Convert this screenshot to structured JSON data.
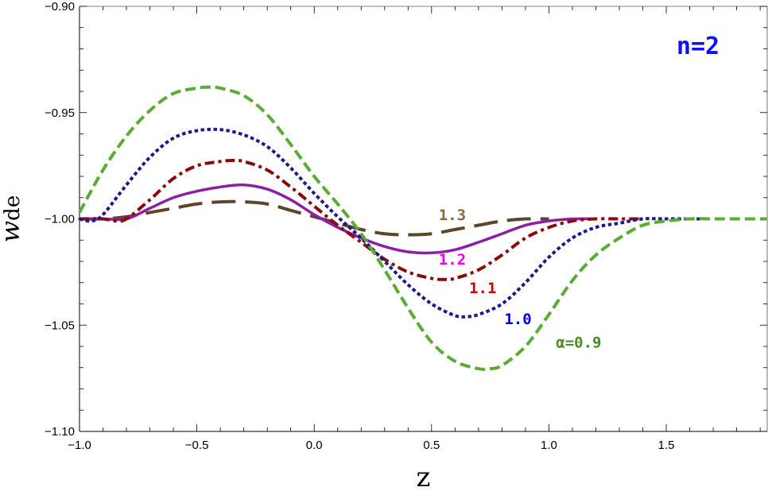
{
  "chart_data": {
    "type": "line",
    "xlabel": "z",
    "ylabel_main": "w",
    "ylabel_sub": "de",
    "panel_label": "n=2",
    "xlim": [
      -1.0,
      1.93
    ],
    "ylim": [
      -1.1,
      -0.9
    ],
    "x_ticks": [
      -1.0,
      -0.5,
      0.0,
      0.5,
      1.0,
      1.5
    ],
    "x_tick_labels": [
      "−1.0",
      "−0.5",
      "0.0",
      "0.5",
      "1.0",
      "1.5"
    ],
    "y_ticks": [
      -0.9,
      -0.95,
      -1.0,
      -1.05,
      -1.1
    ],
    "y_tick_labels": [
      "−0.90",
      "−0.95",
      "−1.00",
      "−1.05",
      "−1.10"
    ],
    "colors": {
      "alpha_0_9": "#5aac34",
      "alpha_1_0": "#1a1a8c",
      "alpha_1_1": "#8b0a0a",
      "alpha_1_2": "#8b1fa6",
      "alpha_1_3": "#5c4528",
      "label_1_0": "#0000ee",
      "label_1_1": "#cc0000",
      "label_1_2": "#ee00ee",
      "label_1_3": "#8b6a3e",
      "label_0_9": "#4a8a28",
      "panel": "#1010ff"
    },
    "series": [
      {
        "name": "α=0.9",
        "style": "dashed",
        "x": [
          -1.0,
          -0.9,
          -0.8,
          -0.7,
          -0.6,
          -0.5,
          -0.45,
          -0.4,
          -0.3,
          -0.2,
          -0.1,
          0.0,
          0.1,
          0.2,
          0.3,
          0.4,
          0.5,
          0.6,
          0.7,
          0.75,
          0.8,
          0.9,
          1.0,
          1.1,
          1.2,
          1.3,
          1.4,
          1.5,
          1.6,
          1.7,
          1.8,
          1.93
        ],
        "y": [
          -0.997,
          -0.977,
          -0.961,
          -0.949,
          -0.941,
          -0.9385,
          -0.938,
          -0.9385,
          -0.942,
          -0.951,
          -0.965,
          -0.98,
          -0.993,
          -1.007,
          -1.024,
          -1.042,
          -1.058,
          -1.067,
          -1.0705,
          -1.0705,
          -1.069,
          -1.06,
          -1.045,
          -1.029,
          -1.017,
          -1.009,
          -1.003,
          -1.001,
          -1.0,
          -1.0,
          -1.0,
          -1.0
        ]
      },
      {
        "name": "1.0",
        "style": "dotted",
        "x": [
          -1.0,
          -0.95,
          -0.9,
          -0.8,
          -0.7,
          -0.6,
          -0.5,
          -0.4,
          -0.3,
          -0.2,
          -0.1,
          0.0,
          0.1,
          0.2,
          0.3,
          0.4,
          0.5,
          0.6,
          0.65,
          0.7,
          0.8,
          0.9,
          1.0,
          1.1,
          1.2,
          1.3,
          1.4,
          1.5,
          1.6,
          1.65
        ],
        "y": [
          -1.0,
          -1.001,
          -0.998,
          -0.984,
          -0.971,
          -0.962,
          -0.9585,
          -0.958,
          -0.9605,
          -0.966,
          -0.976,
          -0.988,
          -0.999,
          -1.009,
          -1.02,
          -1.031,
          -1.04,
          -1.0455,
          -1.046,
          -1.045,
          -1.04,
          -1.03,
          -1.018,
          -1.009,
          -1.004,
          -1.002,
          -1.0,
          -1.0,
          -1.0,
          -1.0
        ]
      },
      {
        "name": "1.1",
        "style": "dashdot",
        "x": [
          -1.0,
          -0.9,
          -0.85,
          -0.8,
          -0.7,
          -0.6,
          -0.5,
          -0.4,
          -0.35,
          -0.3,
          -0.2,
          -0.1,
          0.0,
          0.1,
          0.2,
          0.3,
          0.4,
          0.5,
          0.55,
          0.6,
          0.7,
          0.8,
          0.9,
          1.0,
          1.1,
          1.2,
          1.3,
          1.4
        ],
        "y": [
          -1.0,
          -1.0,
          -1.001,
          -1.0,
          -0.991,
          -0.981,
          -0.975,
          -0.973,
          -0.9725,
          -0.973,
          -0.977,
          -0.985,
          -0.994,
          -1.003,
          -1.011,
          -1.019,
          -1.025,
          -1.028,
          -1.0285,
          -1.028,
          -1.024,
          -1.017,
          -1.009,
          -1.004,
          -1.001,
          -1.0,
          -1.0,
          -1.0
        ]
      },
      {
        "name": "1.2",
        "style": "solid",
        "x": [
          -1.0,
          -0.9,
          -0.8,
          -0.7,
          -0.6,
          -0.5,
          -0.4,
          -0.3,
          -0.2,
          -0.1,
          0.0,
          0.1,
          0.2,
          0.3,
          0.4,
          0.5,
          0.6,
          0.7,
          0.8,
          0.9,
          1.0,
          1.1,
          1.18
        ],
        "y": [
          -1.0,
          -1.0,
          -1.0,
          -0.995,
          -0.99,
          -0.987,
          -0.985,
          -0.984,
          -0.986,
          -0.991,
          -0.998,
          -1.004,
          -1.009,
          -1.013,
          -1.0155,
          -1.016,
          -1.0145,
          -1.011,
          -1.007,
          -1.003,
          -1.001,
          -1.0,
          -1.0
        ]
      },
      {
        "name": "1.3",
        "style": "longdash",
        "x": [
          -1.0,
          -0.9,
          -0.8,
          -0.7,
          -0.6,
          -0.5,
          -0.4,
          -0.3,
          -0.2,
          -0.1,
          0.0,
          0.1,
          0.2,
          0.3,
          0.4,
          0.5,
          0.6,
          0.7,
          0.8,
          0.9,
          1.0
        ],
        "y": [
          -1.0,
          -1.0,
          -0.999,
          -0.997,
          -0.995,
          -0.993,
          -0.992,
          -0.992,
          -0.993,
          -0.996,
          -0.999,
          -1.002,
          -1.005,
          -1.007,
          -1.0075,
          -1.007,
          -1.005,
          -1.003,
          -1.001,
          -1.0,
          -1.0
        ]
      }
    ],
    "annotations": [
      {
        "text": "1.3",
        "x": 0.53,
        "y": -1.0005,
        "color_key": "label_1_3"
      },
      {
        "text": "1.2",
        "x": 0.53,
        "y": -1.0215,
        "color_key": "label_1_2"
      },
      {
        "text": "1.1",
        "x": 0.66,
        "y": -1.035,
        "color_key": "label_1_1"
      },
      {
        "text": "1.0",
        "x": 0.81,
        "y": -1.0495,
        "color_key": "label_1_0"
      },
      {
        "text": "α=0.9",
        "x": 1.03,
        "y": -1.0605,
        "color_key": "label_0_9"
      }
    ]
  }
}
